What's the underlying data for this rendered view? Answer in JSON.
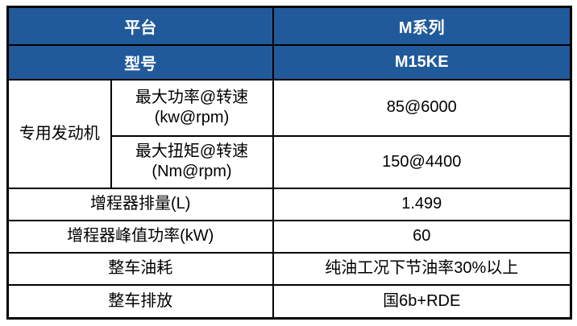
{
  "colors": {
    "header_bg": "#215A9B",
    "header_text": "#FFFFFF",
    "body_text": "#000000",
    "border": "#000000",
    "background": "#FFFFFF"
  },
  "table": {
    "header_rows": [
      {
        "label": "平台",
        "value": "M系列"
      },
      {
        "label": "型号",
        "value": "M15KE"
      }
    ],
    "engine_section": {
      "group_label": "专用发动机",
      "rows": [
        {
          "label_line1": "最大功率@转速",
          "label_line2": "(kw@rpm)",
          "value": "85@6000"
        },
        {
          "label_line1": "最大扭矩@转速",
          "label_line2": "(Nm@rpm)",
          "value": "150@4400"
        }
      ]
    },
    "spec_rows": [
      {
        "label": "增程器排量(L)",
        "value": "1.499"
      },
      {
        "label": "增程器峰值功率(kW)",
        "value": "60"
      },
      {
        "label": "整车油耗",
        "value": "纯油工况下节油率30%以上"
      },
      {
        "label": "整车排放",
        "value": "国6b+RDE"
      }
    ]
  }
}
